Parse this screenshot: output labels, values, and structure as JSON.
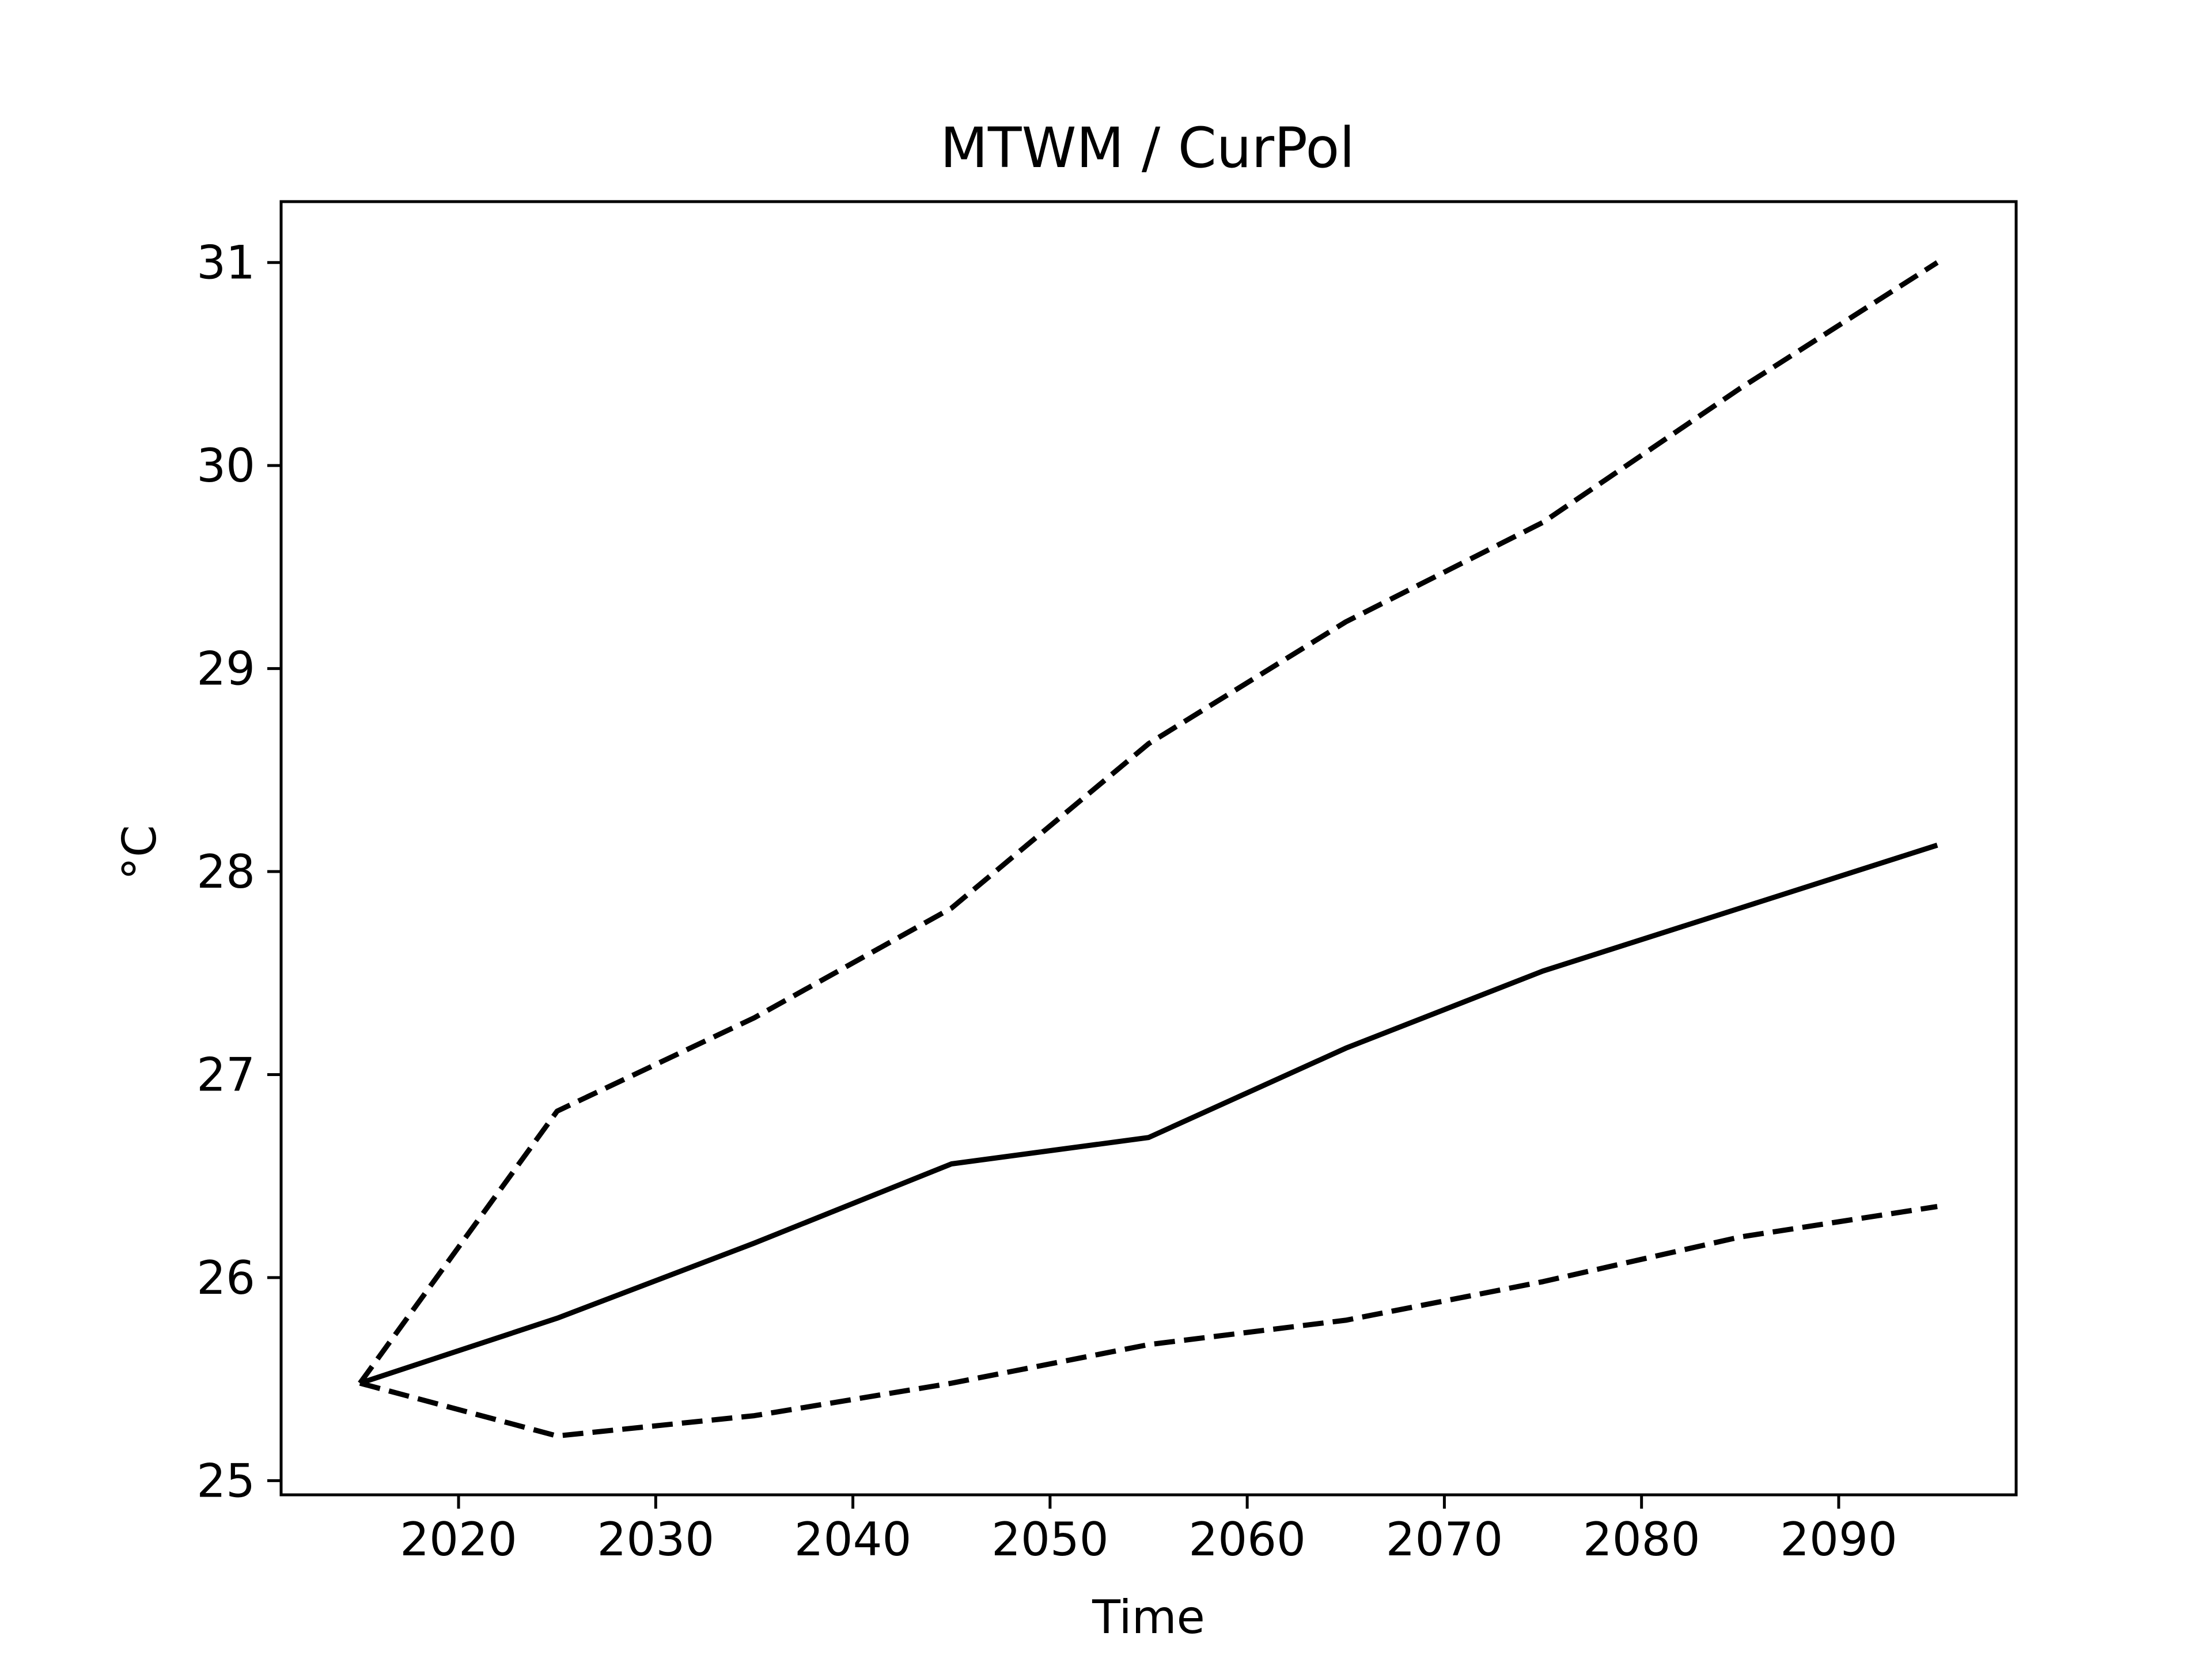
{
  "chart_data": {
    "type": "line",
    "title": "MTWM / CurPol",
    "xlabel": "Time",
    "ylabel": "°C",
    "xlim": [
      2011,
      2099
    ],
    "ylim": [
      24.93,
      31.3
    ],
    "xticks": [
      2020,
      2030,
      2040,
      2050,
      2060,
      2070,
      2080,
      2090
    ],
    "yticks": [
      25,
      26,
      27,
      28,
      29,
      30,
      31
    ],
    "grid": false,
    "x": [
      2015,
      2025,
      2035,
      2045,
      2055,
      2065,
      2075,
      2085,
      2095
    ],
    "series": [
      {
        "style": "dashed",
        "values": [
          25.48,
          26.82,
          27.28,
          27.82,
          28.63,
          29.23,
          29.72,
          30.38,
          31.0
        ]
      },
      {
        "style": "solid",
        "values": [
          25.48,
          25.8,
          26.17,
          26.56,
          26.69,
          27.13,
          27.51,
          27.82,
          28.13
        ]
      },
      {
        "style": "dashed",
        "values": [
          25.48,
          25.22,
          25.32,
          25.48,
          25.67,
          25.79,
          25.98,
          26.2,
          26.35
        ]
      }
    ],
    "colors": {
      "line": "#000000",
      "axes": "#000000",
      "background": "#ffffff"
    }
  }
}
